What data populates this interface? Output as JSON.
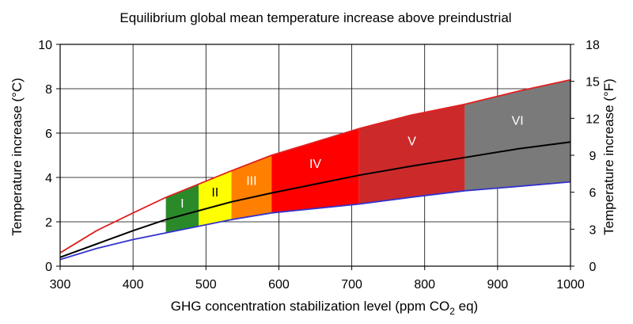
{
  "chart_data": {
    "type": "area",
    "title": "Equilibrium global mean temperature increase above preindustrial",
    "xlabel": {
      "text": "GHG concentration stabilization level (ppm CO",
      "sub": "2",
      "tail": " eq)"
    },
    "ylabel_left": "Temperature increase (°C)",
    "ylabel_right": "Temperature increase (°F)",
    "xlim": [
      300,
      1000
    ],
    "ylim": [
      0,
      10
    ],
    "ylim_right": [
      0,
      18
    ],
    "x_ticks": [
      300,
      400,
      500,
      600,
      700,
      800,
      900,
      1000
    ],
    "y_ticks_left": [
      0,
      2,
      4,
      6,
      8,
      10
    ],
    "y_ticks_right": [
      0,
      3,
      6,
      9,
      12,
      15,
      18
    ],
    "grid": true,
    "series": [
      {
        "role": "upper",
        "color": "#e02020",
        "x": [
          300,
          350,
          400,
          445,
          490,
          535,
          590,
          650,
          710,
          780,
          855,
          930,
          1000
        ],
        "y": [
          0.6,
          1.6,
          2.4,
          3.1,
          3.7,
          4.3,
          5.0,
          5.6,
          6.2,
          6.8,
          7.3,
          7.9,
          8.4
        ]
      },
      {
        "role": "best-estimate",
        "color": "#000000",
        "x": [
          300,
          350,
          400,
          445,
          490,
          535,
          590,
          650,
          710,
          780,
          855,
          930,
          1000
        ],
        "y": [
          0.4,
          1.0,
          1.6,
          2.1,
          2.5,
          2.9,
          3.3,
          3.7,
          4.1,
          4.5,
          4.9,
          5.3,
          5.6
        ]
      },
      {
        "role": "lower",
        "color": "#3333cc",
        "x": [
          300,
          350,
          400,
          445,
          490,
          535,
          590,
          650,
          710,
          780,
          855,
          930,
          1000
        ],
        "y": [
          0.3,
          0.8,
          1.2,
          1.5,
          1.8,
          2.1,
          2.4,
          2.6,
          2.8,
          3.1,
          3.4,
          3.6,
          3.8
        ]
      }
    ],
    "regions": [
      {
        "label": "I",
        "x_start": 445,
        "x_end": 490,
        "color": "#2a8a2a",
        "label_color": "#ffffff"
      },
      {
        "label": "II",
        "x_start": 490,
        "x_end": 535,
        "color": "#ffff00",
        "label_color": "#000000"
      },
      {
        "label": "III",
        "x_start": 535,
        "x_end": 590,
        "color": "#ff8000",
        "label_color": "#ffffff"
      },
      {
        "label": "IV",
        "x_start": 590,
        "x_end": 710,
        "color": "#ff0000",
        "label_color": "#ffffff"
      },
      {
        "label": "V",
        "x_start": 710,
        "x_end": 855,
        "color": "#cc2a2a",
        "label_color": "#ffffff"
      },
      {
        "label": "VI",
        "x_start": 855,
        "x_end": 1000,
        "color": "#7a7a7a",
        "label_color": "#ffffff"
      }
    ]
  }
}
